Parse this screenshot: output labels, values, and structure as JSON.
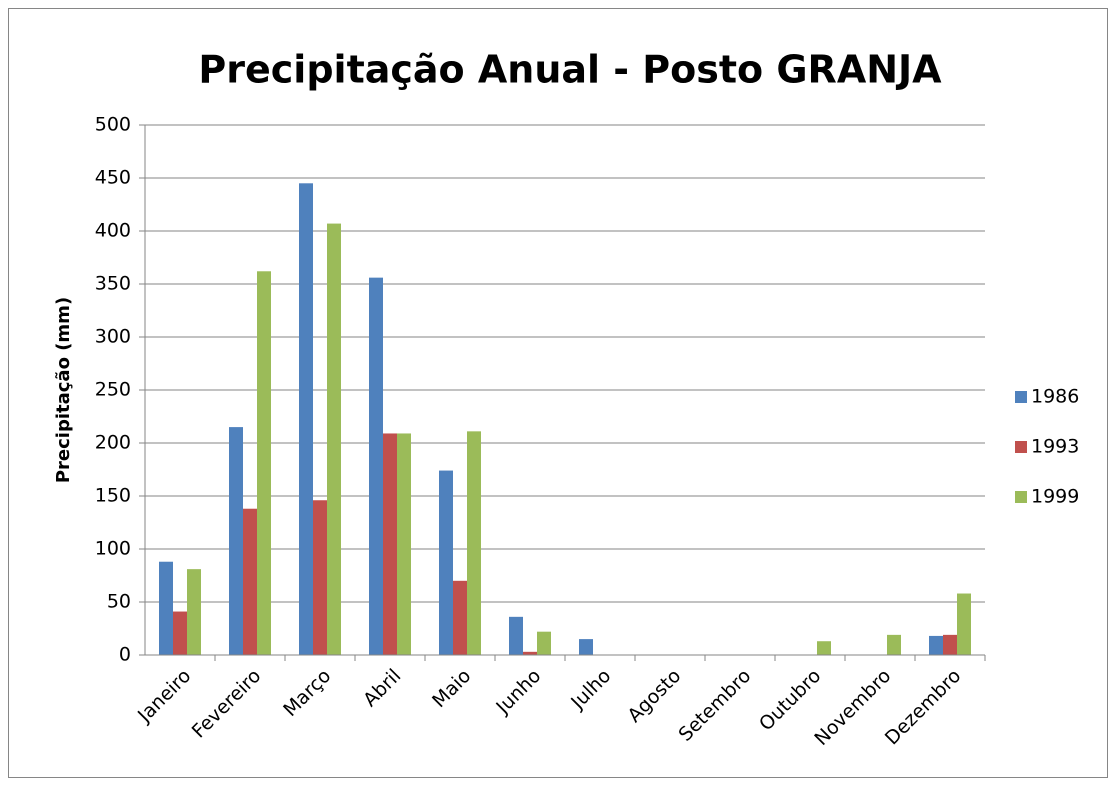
{
  "chart_data": {
    "type": "bar",
    "title": "Precipitação Anual - Posto GRANJA",
    "y_label": "Precipitação (mm)",
    "categories": [
      "Janeiro",
      "Fevereiro",
      "Março",
      "Abril",
      "Maio",
      "Junho",
      "Julho",
      "Agosto",
      "Setembro",
      "Outubro",
      "Novembro",
      "Dezembro"
    ],
    "series": [
      {
        "name": "1986",
        "color": "#4f81bd",
        "values": [
          88,
          215,
          445,
          356,
          174,
          36,
          15,
          0,
          0,
          0,
          0,
          18
        ]
      },
      {
        "name": "1993",
        "color": "#c0504d",
        "values": [
          41,
          138,
          146,
          209,
          70,
          3,
          0,
          0,
          0,
          0,
          0,
          19
        ]
      },
      {
        "name": "1999",
        "color": "#9bbb59",
        "values": [
          81,
          362,
          407,
          209,
          211,
          22,
          0,
          0,
          0,
          13,
          19,
          58
        ]
      }
    ],
    "ylim": [
      0,
      500
    ],
    "yticks": [
      0,
      50,
      100,
      150,
      200,
      250,
      300,
      350,
      400,
      450,
      500
    ],
    "grid": true,
    "legend": "right"
  }
}
